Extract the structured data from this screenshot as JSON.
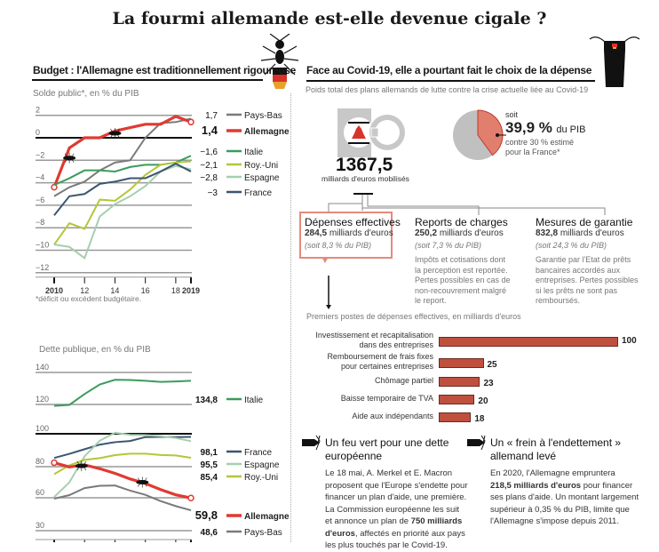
{
  "title": "La fourmi allemande est-elle devenue cigale ?",
  "left": {
    "heading": "Budget : l'Allemagne est traditionnellement rigoureuse",
    "deficit_subtitle": "Solde public*, en % du PIB",
    "footnote": "*déficit ou excédent budgétaire.",
    "debt_subtitle": "Dette publique, en % du PIB"
  },
  "right": {
    "heading": "Face au Covid-19, elle a pourtant fait le choix de la dépense",
    "subtitle": "Poids total des plans allemands de lutte contre la crise actuelle liée au Covid-19",
    "total": "1367,5",
    "total_unit": "milliards d'euros mobilisés",
    "pie": {
      "pre": "soit",
      "value": "39,9 %",
      "unit": "du PIB",
      "note1": "contre 30 % estimé",
      "note2": "pour la France*",
      "share": 0.399
    },
    "boxes": [
      {
        "title": "Dépenses effectives",
        "amount": "284,5",
        "unit": "milliards d'euros",
        "pct": "(soit 8,3 % du PIB)",
        "desc": []
      },
      {
        "title": "Reports de charges",
        "amount": "250,2",
        "unit": "milliards d'euros",
        "pct": "(soit 7,3 % du PIB)",
        "desc": [
          "Impôts et cotisations dont",
          "la perception est reportée.",
          "Pertes possibles en cas de",
          "non-recouvrement malgré",
          "le report."
        ]
      },
      {
        "title": "Mesures de garantie",
        "amount": "832,8",
        "unit": "milliards d'euros",
        "pct": "(soit 24,3 % du PIB)",
        "desc": [
          "Garantie par l'Etat de prêts",
          "bancaires accordés aux",
          "entreprises. Pertes possibles",
          "si les prêts ne sont pas",
          "remboursés."
        ]
      }
    ],
    "bars_subtitle": "Premiers postes de dépenses effectives, en milliards d'euros",
    "notes": [
      {
        "title1": "Un feu vert pour une dette",
        "title2": "européenne",
        "body": [
          "Le 18 mai, A. Merkel et E. Macron",
          "proposent que l'Europe s'endette pour",
          "financer un plan d'aide, une première.",
          "La Commission européenne les suit"
        ],
        "b5a": "et annonce un plan de ",
        "b5b": "750 milliards",
        "b6a": "d'euros",
        "b6b": ", affectés en priorité aux pays",
        "b7": "les plus touchés par le Covid-19."
      },
      {
        "title1": "Un « frein à l'endettement »",
        "title2": "allemand levé",
        "l1": "En 2020, l'Allemagne empruntera",
        "l2a": "218,5 milliards d'euros",
        "l2b": " pour financer",
        "l3": "ses plans d'aide. Un montant largement",
        "l4": "supérieur à 0,35 % du PIB, limite que",
        "l5": "l'Allemagne s'impose depuis 2011."
      }
    ]
  },
  "chart_data": [
    {
      "type": "line",
      "title": "Solde public*, en % du PIB",
      "x": [
        2010,
        2011,
        2012,
        2013,
        2014,
        2015,
        2016,
        2017,
        2018,
        2019
      ],
      "xticks": [
        "2010",
        "12",
        "14",
        "16",
        "18",
        "2019"
      ],
      "yticks": [
        "2",
        "0",
        "−2",
        "−4",
        "−6",
        "−8",
        "−10",
        "−12"
      ],
      "ylim": [
        -12,
        2
      ],
      "series": [
        {
          "name": "Pays-Bas",
          "label": "1,7",
          "color": "#7a7a7a",
          "values": [
            -5.2,
            -4.4,
            -3.9,
            -2.9,
            -2.2,
            -2.0,
            0.0,
            1.3,
            1.4,
            1.7
          ]
        },
        {
          "name": "Allemagne",
          "label": "1,4",
          "color": "#e03a32",
          "values": [
            -4.4,
            -0.9,
            0,
            0,
            0.6,
            0.9,
            1.2,
            1.2,
            1.9,
            1.4
          ]
        },
        {
          "name": "Italie",
          "label": "−1,6",
          "color": "#3a9c5c",
          "values": [
            -4.2,
            -3.6,
            -2.9,
            -2.9,
            -3.0,
            -2.6,
            -2.4,
            -2.4,
            -2.2,
            -1.6
          ]
        },
        {
          "name": "Roy.-Uni",
          "label": "−2,1",
          "color": "#b5c63a",
          "values": [
            -9.5,
            -7.6,
            -8.1,
            -5.5,
            -5.6,
            -4.6,
            -3.3,
            -2.4,
            -2.2,
            -2.1
          ]
        },
        {
          "name": "Espagne",
          "label": "−2,8",
          "color": "#a5cfb0",
          "values": [
            -9.5,
            -9.7,
            -10.7,
            -7.0,
            -5.9,
            -5.2,
            -4.3,
            -3.0,
            -2.5,
            -2.8
          ]
        },
        {
          "name": "France",
          "label": "−3",
          "color": "#3b5670",
          "values": [
            -6.9,
            -5.2,
            -5.0,
            -4.1,
            -3.9,
            -3.6,
            -3.6,
            -3.0,
            -2.3,
            -3.0
          ]
        }
      ]
    },
    {
      "type": "line",
      "title": "Dette publique, en % du PIB",
      "x": [
        2010,
        2011,
        2012,
        2013,
        2014,
        2015,
        2016,
        2017,
        2018,
        2019
      ],
      "xticks": [
        "2010",
        "12",
        "14",
        "16",
        "18",
        "2019"
      ],
      "yticks": [
        "140",
        "120",
        "100",
        "80",
        "60",
        "30"
      ],
      "ylim": [
        30,
        140
      ],
      "series": [
        {
          "name": "Italie",
          "label": "134,8",
          "color": "#3a9c5c",
          "values": [
            119,
            119.7,
            126.5,
            132.5,
            135.4,
            135.3,
            134.8,
            134.1,
            134.4,
            134.8
          ]
        },
        {
          "name": "France",
          "label": "98,1",
          "color": "#3b5670",
          "values": [
            85.3,
            87.8,
            90.6,
            93.4,
            94.9,
            95.6,
            98.0,
            98.1,
            98.0,
            98.1
          ]
        },
        {
          "name": "Espagne",
          "label": "95,5",
          "color": "#a5cfb0",
          "values": [
            60.5,
            69.9,
            86.3,
            95.8,
            100.7,
            99.3,
            99.2,
            98.6,
            97.4,
            95.5
          ]
        },
        {
          "name": "Roy.-Uni",
          "label": "85,4",
          "color": "#b5c63a",
          "values": [
            75.2,
            80.8,
            84.1,
            85.2,
            87.0,
            87.9,
            87.9,
            87.1,
            86.8,
            85.4
          ]
        },
        {
          "name": "Allemagne",
          "label": "59,8",
          "color": "#e03a32",
          "values": [
            82.4,
            79.8,
            81.1,
            78.7,
            75.7,
            72.1,
            69.2,
            65.3,
            61.9,
            59.8
          ]
        },
        {
          "name": "Pays-Bas",
          "label": "48,6",
          "color": "#7a7a7a",
          "values": [
            59.2,
            61.7,
            66.2,
            67.7,
            67.9,
            64.6,
            61.9,
            57.0,
            52.4,
            48.6
          ]
        }
      ]
    },
    {
      "type": "bar",
      "title": "Premiers postes de dépenses effectives, en milliards d'euros",
      "categories": [
        "Investissement et recapitalisation dans des entreprises",
        "Remboursement de frais fixes pour certaines entreprises",
        "Chômage partiel",
        "Baisse temporaire de TVA",
        "Aide aux indépendants"
      ],
      "labels": [
        [
          "Investissement et recapitalisation",
          "dans des entreprises"
        ],
        [
          "Remboursement de frais fixes",
          "pour certaines entreprises"
        ],
        [
          "Chômage partiel"
        ],
        [
          "Baisse temporaire de TVA"
        ],
        [
          "Aide aux indépendants"
        ]
      ],
      "values": [
        100,
        25,
        23,
        20,
        18
      ],
      "color": "#c0503e"
    }
  ]
}
